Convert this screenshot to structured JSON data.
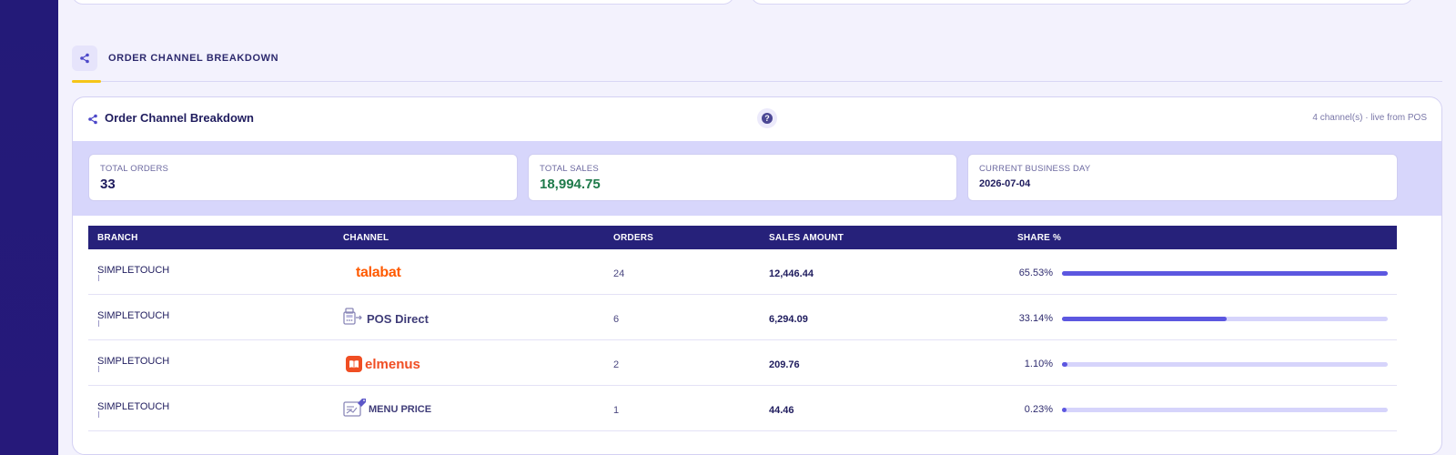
{
  "section": {
    "title": "ORDER CHANNEL BREAKDOWN",
    "icon": "share-icon"
  },
  "panel": {
    "title": "Order Channel Breakdown",
    "help_icon": "help-icon",
    "help_glyph": "?",
    "meta": "4 channel(s) · live from POS"
  },
  "kpis": {
    "total_orders": {
      "label": "TOTAL ORDERS",
      "value": "33"
    },
    "total_sales": {
      "label": "TOTAL SALES",
      "value": "18,994.75"
    },
    "business_day": {
      "label": "CURRENT BUSINESS DAY",
      "value": "2026-07-04"
    }
  },
  "table": {
    "headers": {
      "branch": "BRANCH",
      "channel": "CHANNEL",
      "orders": "ORDERS",
      "sales": "SALES AMOUNT",
      "share": "SHARE %"
    },
    "rows": [
      {
        "branch": "SIMPLETOUCH",
        "channel": "talabat",
        "channel_icon": "talabat-logo",
        "orders": "24",
        "sales": "12,446.44",
        "share": "65.53%",
        "share_fraction": 1.0
      },
      {
        "branch": "SIMPLETOUCH",
        "channel": "POS Direct",
        "channel_icon": "pos-terminal-icon",
        "orders": "6",
        "sales": "6,294.09",
        "share": "33.14%",
        "share_fraction": 0.506
      },
      {
        "branch": "SIMPLETOUCH",
        "channel": "elmenus",
        "channel_icon": "elmenus-logo",
        "orders": "2",
        "sales": "209.76",
        "share": "1.10%",
        "share_fraction": 0.017
      },
      {
        "branch": "SIMPLETOUCH",
        "channel": "MENU PRICE",
        "channel_icon": "menu-price-icon",
        "orders": "1",
        "sales": "44.46",
        "share": "0.23%",
        "share_fraction": 0.0035
      }
    ]
  },
  "colors": {
    "accent": "#5c57e0",
    "header_bg": "#26217a",
    "sales_green": "#1e7a4a",
    "talabat": "#ff5a00",
    "elmenus": "#f04e23",
    "underline": "#f5c518"
  }
}
